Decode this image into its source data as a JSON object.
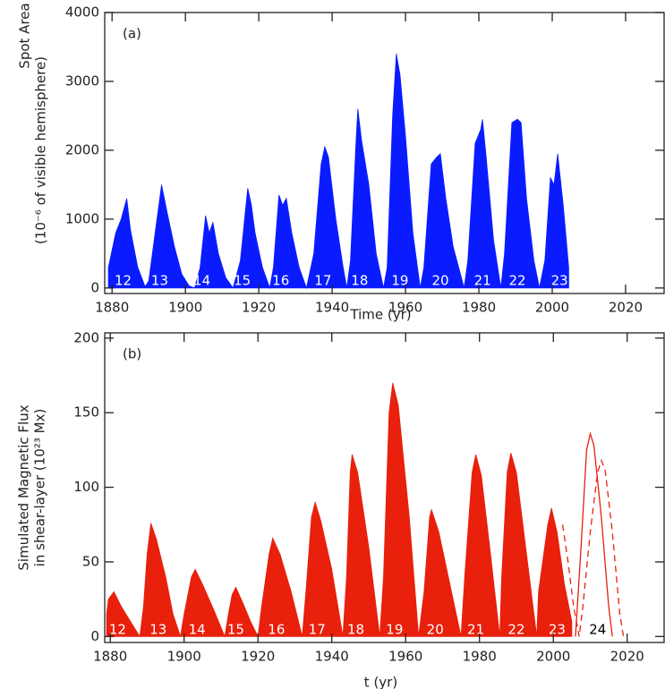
{
  "chart_data": [
    {
      "type": "area",
      "panel_label": "(a)",
      "ylabel": [
        "Spot Area",
        "(10⁻⁶ of visible hemisphere)"
      ],
      "xlabel": "Time (yr)",
      "xlim": [
        1878,
        2030.5
      ],
      "ylim": [
        -80,
        4000
      ],
      "xticks": [
        1880,
        1900,
        1920,
        1940,
        1960,
        1980,
        2000,
        2020
      ],
      "yticks": [
        0,
        1000,
        2000,
        3000,
        4000
      ],
      "series": [
        {
          "color": "#0a1cff",
          "style": "fill",
          "x": [
            1879,
            1881,
            1882.5,
            1884,
            1885,
            1887,
            1889,
            1890,
            1891.5,
            1893,
            1893.5,
            1895,
            1897,
            1899,
            1901,
            1902.5,
            1904,
            1905.5,
            1906.5,
            1907.5,
            1909,
            1911,
            1913,
            1915,
            1917,
            1918,
            1919,
            1921,
            1923,
            1924,
            1925.5,
            1926.5,
            1927.5,
            1929,
            1931,
            1933,
            1935,
            1937,
            1938,
            1939,
            1941,
            1943,
            1944,
            1945,
            1946.5,
            1947,
            1948,
            1950,
            1952,
            1954,
            1955,
            1956.5,
            1957.5,
            1958.5,
            1960,
            1962,
            1964,
            1965,
            1967,
            1968.5,
            1969.5,
            1971,
            1973,
            1976,
            1977,
            1979,
            1980.5,
            1981,
            1982,
            1984,
            1986,
            1987,
            1989,
            1990.5,
            1991.5,
            1993,
            1995,
            1996.5,
            1998,
            1999.5,
            2000.5,
            2001.5,
            2003,
            2004.5
          ],
          "values": [
            300,
            800,
            1000,
            1300,
            850,
            300,
            20,
            100,
            700,
            1300,
            1500,
            1100,
            600,
            200,
            30,
            0,
            300,
            1050,
            800,
            950,
            500,
            150,
            0,
            400,
            1450,
            1200,
            800,
            300,
            0,
            300,
            1350,
            1200,
            1300,
            800,
            300,
            0,
            500,
            1800,
            2050,
            1900,
            1000,
            300,
            0,
            400,
            2100,
            2600,
            2150,
            1500,
            500,
            0,
            300,
            2500,
            3400,
            3100,
            2200,
            800,
            0,
            300,
            1800,
            1900,
            1950,
            1300,
            600,
            0,
            400,
            2100,
            2300,
            2450,
            1900,
            700,
            0,
            500,
            2400,
            2450,
            2400,
            1300,
            400,
            0,
            400,
            1600,
            1500,
            1950,
            1200,
            300
          ]
        }
      ],
      "cycle_labels": [
        {
          "text": "12",
          "x": 1883,
          "color": "#ffffff"
        },
        {
          "text": "13",
          "x": 1893,
          "color": "#ffffff"
        },
        {
          "text": "14",
          "x": 1904.5,
          "color": "#ffffff"
        },
        {
          "text": "15",
          "x": 1915.5,
          "color": "#ffffff"
        },
        {
          "text": "16",
          "x": 1926,
          "color": "#ffffff"
        },
        {
          "text": "17",
          "x": 1937.5,
          "color": "#ffffff"
        },
        {
          "text": "18",
          "x": 1947.5,
          "color": "#ffffff"
        },
        {
          "text": "19",
          "x": 1958.5,
          "color": "#ffffff"
        },
        {
          "text": "20",
          "x": 1969.5,
          "color": "#ffffff"
        },
        {
          "text": "21",
          "x": 1981,
          "color": "#ffffff"
        },
        {
          "text": "22",
          "x": 1990.5,
          "color": "#ffffff"
        },
        {
          "text": "23",
          "x": 2002,
          "color": "#ffffff"
        }
      ]
    },
    {
      "type": "area",
      "panel_label": "(b)",
      "ylabel": [
        "Simulated Magnetic Flux",
        "in shear-layer (10²³ Mx)"
      ],
      "xlabel": "t (yr)",
      "xlim": [
        1878.5,
        2030
      ],
      "ylim": [
        -4,
        203.5
      ],
      "xticks": [
        1880,
        1900,
        1920,
        1940,
        1960,
        1980,
        2000,
        2020
      ],
      "yticks": [
        0,
        50,
        100,
        150,
        200
      ],
      "series": [
        {
          "color": "#e8200c",
          "style": "fill",
          "x": [
            1879,
            1879.5,
            1881,
            1883,
            1886,
            1888,
            1889,
            1890,
            1891,
            1892.5,
            1895,
            1897,
            1899,
            1900,
            1902,
            1903,
            1905,
            1908,
            1911,
            1912,
            1913,
            1914,
            1916,
            1918,
            1920,
            1921,
            1923,
            1924,
            1926,
            1929,
            1932,
            1933,
            1934.5,
            1935.5,
            1937,
            1940,
            1943,
            1944,
            1945,
            1945.5,
            1947,
            1950,
            1953,
            1954,
            1955.5,
            1956.5,
            1958,
            1961,
            1963.5,
            1965,
            1966.5,
            1967,
            1969,
            1972,
            1975,
            1976,
            1978,
            1979,
            1980.5,
            1983,
            1985.5,
            1986,
            1987.5,
            1988.5,
            1990,
            1993,
            1995.5,
            1996,
            1998.5,
            1999.5,
            2001,
            2003,
            2005
          ],
          "values": [
            15,
            25,
            30,
            20,
            8,
            0,
            20,
            55,
            76,
            65,
            40,
            15,
            0,
            15,
            40,
            45,
            35,
            18,
            0,
            15,
            28,
            33,
            22,
            10,
            0,
            20,
            55,
            66,
            55,
            30,
            0,
            30,
            80,
            90,
            78,
            45,
            0,
            40,
            110,
            122,
            110,
            60,
            0,
            40,
            150,
            170,
            155,
            80,
            0,
            30,
            80,
            85,
            70,
            35,
            0,
            40,
            110,
            122,
            108,
            55,
            0,
            40,
            110,
            123,
            110,
            50,
            0,
            30,
            75,
            86,
            70,
            35,
            10
          ]
        },
        {
          "color": "#e8200c",
          "style": "solid",
          "x": [
            2006,
            2007.5,
            2009,
            2010,
            2011,
            2013,
            2015,
            2016
          ],
          "values": [
            0,
            60,
            125,
            136,
            128,
            80,
            20,
            0
          ]
        },
        {
          "color": "#e8200c",
          "style": "dashed",
          "x": [
            2002.5,
            2004,
            2005.5,
            2007,
            2008,
            2010,
            2012,
            2013,
            2014,
            2016,
            2018,
            2019
          ],
          "values": [
            75,
            50,
            20,
            0,
            20,
            70,
            110,
            118,
            112,
            70,
            15,
            0
          ]
        }
      ],
      "cycle_labels": [
        {
          "text": "12",
          "x": 1882,
          "color": "#ffffff"
        },
        {
          "text": "13",
          "x": 1893,
          "color": "#ffffff"
        },
        {
          "text": "14",
          "x": 1903.5,
          "color": "#ffffff"
        },
        {
          "text": "15",
          "x": 1914,
          "color": "#ffffff"
        },
        {
          "text": "16",
          "x": 1925,
          "color": "#ffffff"
        },
        {
          "text": "17",
          "x": 1936,
          "color": "#ffffff"
        },
        {
          "text": "18",
          "x": 1946.5,
          "color": "#ffffff"
        },
        {
          "text": "19",
          "x": 1957,
          "color": "#ffffff"
        },
        {
          "text": "20",
          "x": 1968,
          "color": "#ffffff"
        },
        {
          "text": "21",
          "x": 1979,
          "color": "#ffffff"
        },
        {
          "text": "22",
          "x": 1990,
          "color": "#ffffff"
        },
        {
          "text": "23",
          "x": 2001,
          "color": "#ffffff"
        },
        {
          "text": "24",
          "x": 2012,
          "color": "#000000"
        }
      ]
    }
  ]
}
